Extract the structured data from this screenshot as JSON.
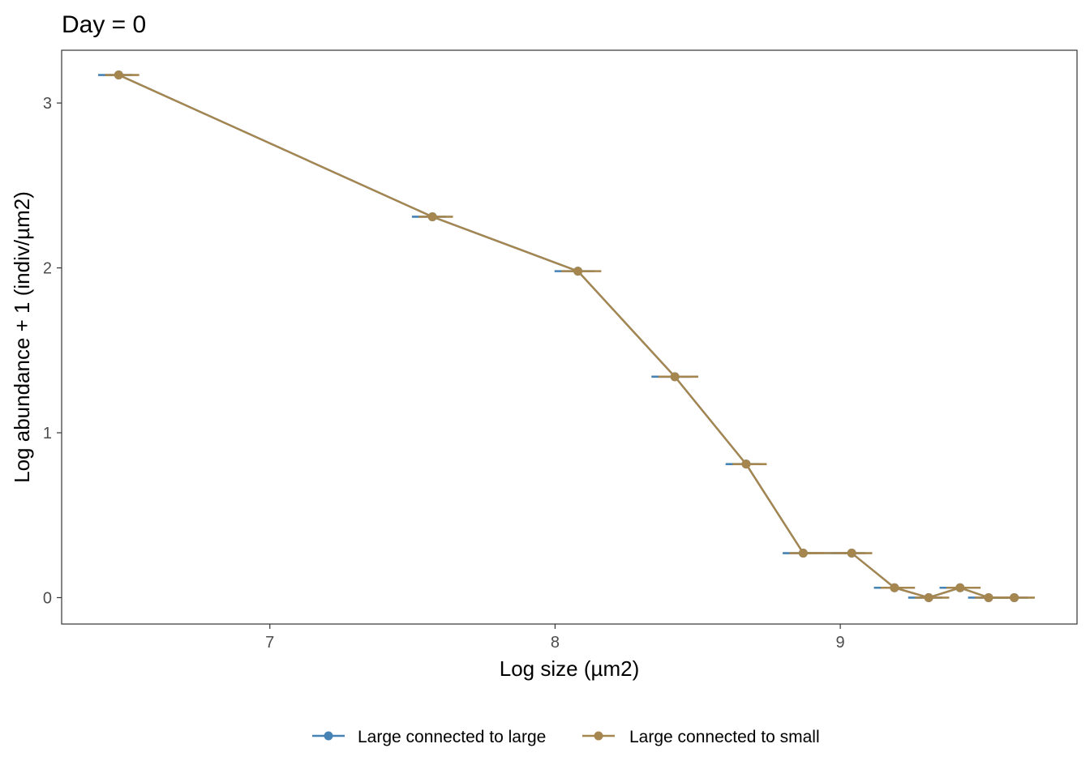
{
  "chart_data": {
    "type": "line",
    "title": "Day = 0",
    "xlabel": "Log size (µm2)",
    "ylabel": "Log abundance + 1 (indiv/µm2)",
    "xlim": [
      6.27,
      9.83
    ],
    "ylim": [
      -0.16,
      3.32
    ],
    "x_ticks": [
      7,
      8,
      9
    ],
    "y_ticks": [
      0,
      1,
      2,
      3
    ],
    "grid": false,
    "legend_position": "bottom",
    "series": [
      {
        "name": "Large connected to large",
        "color": "#4682B4",
        "x": [
          6.47,
          7.57,
          8.08,
          8.42,
          8.67,
          8.87,
          9.04,
          9.19,
          9.31,
          9.42,
          9.52,
          9.61
        ],
        "y": [
          3.17,
          2.31,
          1.98,
          1.34,
          0.81,
          0.27,
          0.27,
          0.06,
          0.0,
          0.06,
          0.0,
          0.0
        ],
        "err_x": [
          0.06,
          0.06,
          0.07,
          0.07,
          0.06,
          0.06,
          0.06,
          0.06,
          0.06,
          0.06,
          0.06,
          0.06
        ]
      },
      {
        "name": "Large connected to small",
        "color": "#A6864F",
        "x": [
          6.47,
          7.57,
          8.08,
          8.42,
          8.67,
          8.87,
          9.04,
          9.19,
          9.31,
          9.42,
          9.52,
          9.61
        ],
        "y": [
          3.17,
          2.31,
          1.98,
          1.34,
          0.81,
          0.27,
          0.27,
          0.06,
          0.0,
          0.06,
          0.0,
          0.0
        ],
        "err_x": [
          0.06,
          0.06,
          0.07,
          0.07,
          0.06,
          0.06,
          0.06,
          0.06,
          0.06,
          0.06,
          0.06,
          0.06
        ]
      }
    ]
  }
}
